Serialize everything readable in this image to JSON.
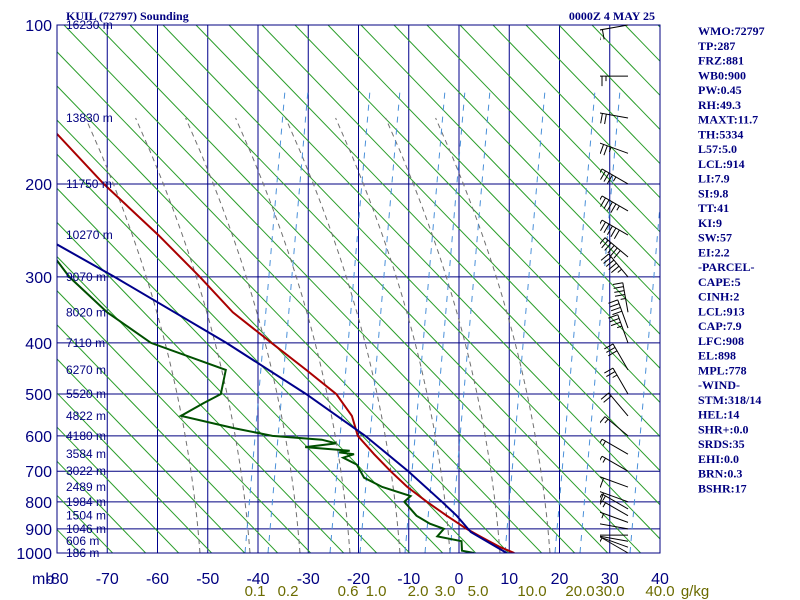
{
  "header": {
    "station_title": "KUIL (72797) Sounding",
    "time_label": "0000Z  4 MAY 25"
  },
  "chart_data": {
    "type": "skew-t",
    "y_axis": {
      "unit_label": "mb",
      "scale": "log",
      "range": [
        1000,
        100
      ],
      "pressure_ticks": [
        1000,
        900,
        800,
        700,
        600,
        500,
        400,
        300,
        200,
        100
      ]
    },
    "x_axis": {
      "temperature_ticks": [
        -80,
        -70,
        -60,
        -50,
        -40,
        -30,
        -20,
        -10,
        0,
        10,
        20,
        30,
        40
      ]
    },
    "height_labels": [
      {
        "p": 100,
        "label": "16230 m"
      },
      {
        "p": 150,
        "label": "13830 m"
      },
      {
        "p": 200,
        "label": "11750 m"
      },
      {
        "p": 250,
        "label": "10270 m"
      },
      {
        "p": 300,
        "label": "9070 m"
      },
      {
        "p": 350,
        "label": "8020 m"
      },
      {
        "p": 400,
        "label": "7110 m"
      },
      {
        "p": 450,
        "label": "6270 m"
      },
      {
        "p": 500,
        "label": "5520 m"
      },
      {
        "p": 550,
        "label": "4822 m"
      },
      {
        "p": 600,
        "label": "4180 m"
      },
      {
        "p": 650,
        "label": "3584 m"
      },
      {
        "p": 700,
        "label": "3022 m"
      },
      {
        "p": 750,
        "label": "2489 m"
      },
      {
        "p": 800,
        "label": "1984 m"
      },
      {
        "p": 850,
        "label": "1504 m"
      },
      {
        "p": 900,
        "label": "1046 m"
      },
      {
        "p": 950,
        "label": "606 m"
      },
      {
        "p": 1000,
        "label": "186 m"
      }
    ],
    "mixing_ratio_labels": [
      "0.1",
      "0.2",
      "0.6",
      "1.0",
      "2.0",
      "3.0",
      "5.0",
      "10.0",
      "20.0",
      "30.0",
      "40.0",
      "g/kg"
    ],
    "series": [
      {
        "kind": "temperature",
        "color": "#aa0000",
        "points": [
          {
            "p": 1000,
            "t": 11
          },
          {
            "p": 975,
            "t": 8
          },
          {
            "p": 950,
            "t": 5.5
          },
          {
            "p": 925,
            "t": 3
          },
          {
            "p": 900,
            "t": 0.5
          },
          {
            "p": 850,
            "t": -4
          },
          {
            "p": 800,
            "t": -8.5
          },
          {
            "p": 750,
            "t": -13
          },
          {
            "p": 700,
            "t": -17
          },
          {
            "p": 650,
            "t": -21
          },
          {
            "p": 600,
            "t": -25
          },
          {
            "p": 550,
            "t": -27
          },
          {
            "p": 500,
            "t": -31
          },
          {
            "p": 450,
            "t": -38
          },
          {
            "p": 400,
            "t": -46
          },
          {
            "p": 350,
            "t": -55
          },
          {
            "p": 300,
            "t": -63
          },
          {
            "p": 250,
            "t": -73
          },
          {
            "p": 200,
            "t": -86
          },
          {
            "p": 150,
            "t": -101
          },
          {
            "p": 100,
            "t": -121
          }
        ]
      },
      {
        "kind": "dewpoint",
        "color": "#005000",
        "points": [
          {
            "p": 1000,
            "t": 3
          },
          {
            "p": 990,
            "t": 0.5
          },
          {
            "p": 950,
            "t": 0
          },
          {
            "p": 930,
            "t": -5
          },
          {
            "p": 900,
            "t": -4
          },
          {
            "p": 880,
            "t": -7
          },
          {
            "p": 850,
            "t": -10
          },
          {
            "p": 800,
            "t": -13
          },
          {
            "p": 780,
            "t": -12
          },
          {
            "p": 750,
            "t": -18
          },
          {
            "p": 720,
            "t": -22
          },
          {
            "p": 700,
            "t": -23
          },
          {
            "p": 680,
            "t": -24
          },
          {
            "p": 660,
            "t": -27
          },
          {
            "p": 650,
            "t": -25
          },
          {
            "p": 645,
            "t": -28
          },
          {
            "p": 640,
            "t": -26
          },
          {
            "p": 630,
            "t": -35
          },
          {
            "p": 620,
            "t": -29
          },
          {
            "p": 610,
            "t": -32
          },
          {
            "p": 600,
            "t": -42
          },
          {
            "p": 580,
            "t": -50
          },
          {
            "p": 550,
            "t": -61
          },
          {
            "p": 520,
            "t": -57
          },
          {
            "p": 500,
            "t": -54
          },
          {
            "p": 450,
            "t": -54
          },
          {
            "p": 400,
            "t": -70
          },
          {
            "p": 350,
            "t": -80
          },
          {
            "p": 300,
            "t": -89
          },
          {
            "p": 250,
            "t": -97
          },
          {
            "p": 210,
            "t": -104
          }
        ]
      },
      {
        "kind": "parcel",
        "color": "#00008b",
        "points": [
          {
            "p": 1000,
            "t": 9.5
          },
          {
            "p": 913,
            "t": 1.5
          },
          {
            "p": 850,
            "t": -2
          },
          {
            "p": 800,
            "t": -5.5
          },
          {
            "p": 700,
            "t": -13.5
          },
          {
            "p": 600,
            "t": -23.5
          },
          {
            "p": 500,
            "t": -37
          },
          {
            "p": 400,
            "t": -55
          },
          {
            "p": 300,
            "t": -80
          },
          {
            "p": 230,
            "t": -104
          }
        ]
      }
    ]
  },
  "indices": [
    "WMO:72797",
    "TP:287",
    "FRZ:881",
    "WB0:900",
    "PW:0.45",
    "RH:49.3",
    "MAXT:11.7",
    "TH:5334",
    "L57:5.0",
    "LCL:914",
    "LI:7.9",
    "SI:9.8",
    "TT:41",
    "KI:9",
    "SW:57",
    "EI:2.2",
    "-PARCEL-",
    "CAPE:5",
    "CINH:2",
    "LCL:913",
    "CAP:7.9",
    "LFC:908",
    "EL:898",
    "MPL:778",
    "-WIND-",
    "STM:318/14",
    "HEL:14",
    "SHR+:0.0",
    "SRDS:35",
    "EHI:0.0",
    "BRN:0.3",
    "BSHR:17"
  ],
  "wind_barbs": [
    {
      "p": 1000,
      "dir": 300,
      "spd": 5
    },
    {
      "p": 975,
      "dir": 290,
      "spd": 5
    },
    {
      "p": 950,
      "dir": 280,
      "spd": 10
    },
    {
      "p": 925,
      "dir": 270,
      "spd": 10
    },
    {
      "p": 900,
      "dir": 280,
      "spd": 10
    },
    {
      "p": 875,
      "dir": 290,
      "spd": 15
    },
    {
      "p": 850,
      "dir": 300,
      "spd": 15
    },
    {
      "p": 825,
      "dir": 300,
      "spd": 15
    },
    {
      "p": 800,
      "dir": 290,
      "spd": 20
    },
    {
      "p": 750,
      "dir": 290,
      "spd": 20
    },
    {
      "p": 700,
      "dir": 300,
      "spd": 15
    },
    {
      "p": 650,
      "dir": 300,
      "spd": 15
    },
    {
      "p": 600,
      "dir": 310,
      "spd": 15
    },
    {
      "p": 550,
      "dir": 320,
      "spd": 20
    },
    {
      "p": 500,
      "dir": 330,
      "spd": 25
    },
    {
      "p": 450,
      "dir": 330,
      "spd": 30
    },
    {
      "p": 400,
      "dir": 340,
      "spd": 35
    },
    {
      "p": 375,
      "dir": 340,
      "spd": 40
    },
    {
      "p": 350,
      "dir": 350,
      "spd": 45
    },
    {
      "p": 300,
      "dir": 320,
      "spd": 55
    },
    {
      "p": 275,
      "dir": 310,
      "spd": 60
    },
    {
      "p": 250,
      "dir": 300,
      "spd": 60
    },
    {
      "p": 225,
      "dir": 300,
      "spd": 55
    },
    {
      "p": 200,
      "dir": 300,
      "spd": 45
    },
    {
      "p": 175,
      "dir": 290,
      "spd": 35
    },
    {
      "p": 150,
      "dir": 280,
      "spd": 30
    },
    {
      "p": 125,
      "dir": 270,
      "spd": 25
    },
    {
      "p": 100,
      "dir": 260,
      "spd": 20
    }
  ],
  "colors": {
    "frame": "#000080",
    "isotherm": "#00008b",
    "dry_adiabat": "#2a9d2a",
    "moist_adiabat": "#707070",
    "mixing_ratio": "#4a90d9",
    "temperature": "#aa0000",
    "dewpoint": "#005000",
    "parcel": "#00008b"
  }
}
